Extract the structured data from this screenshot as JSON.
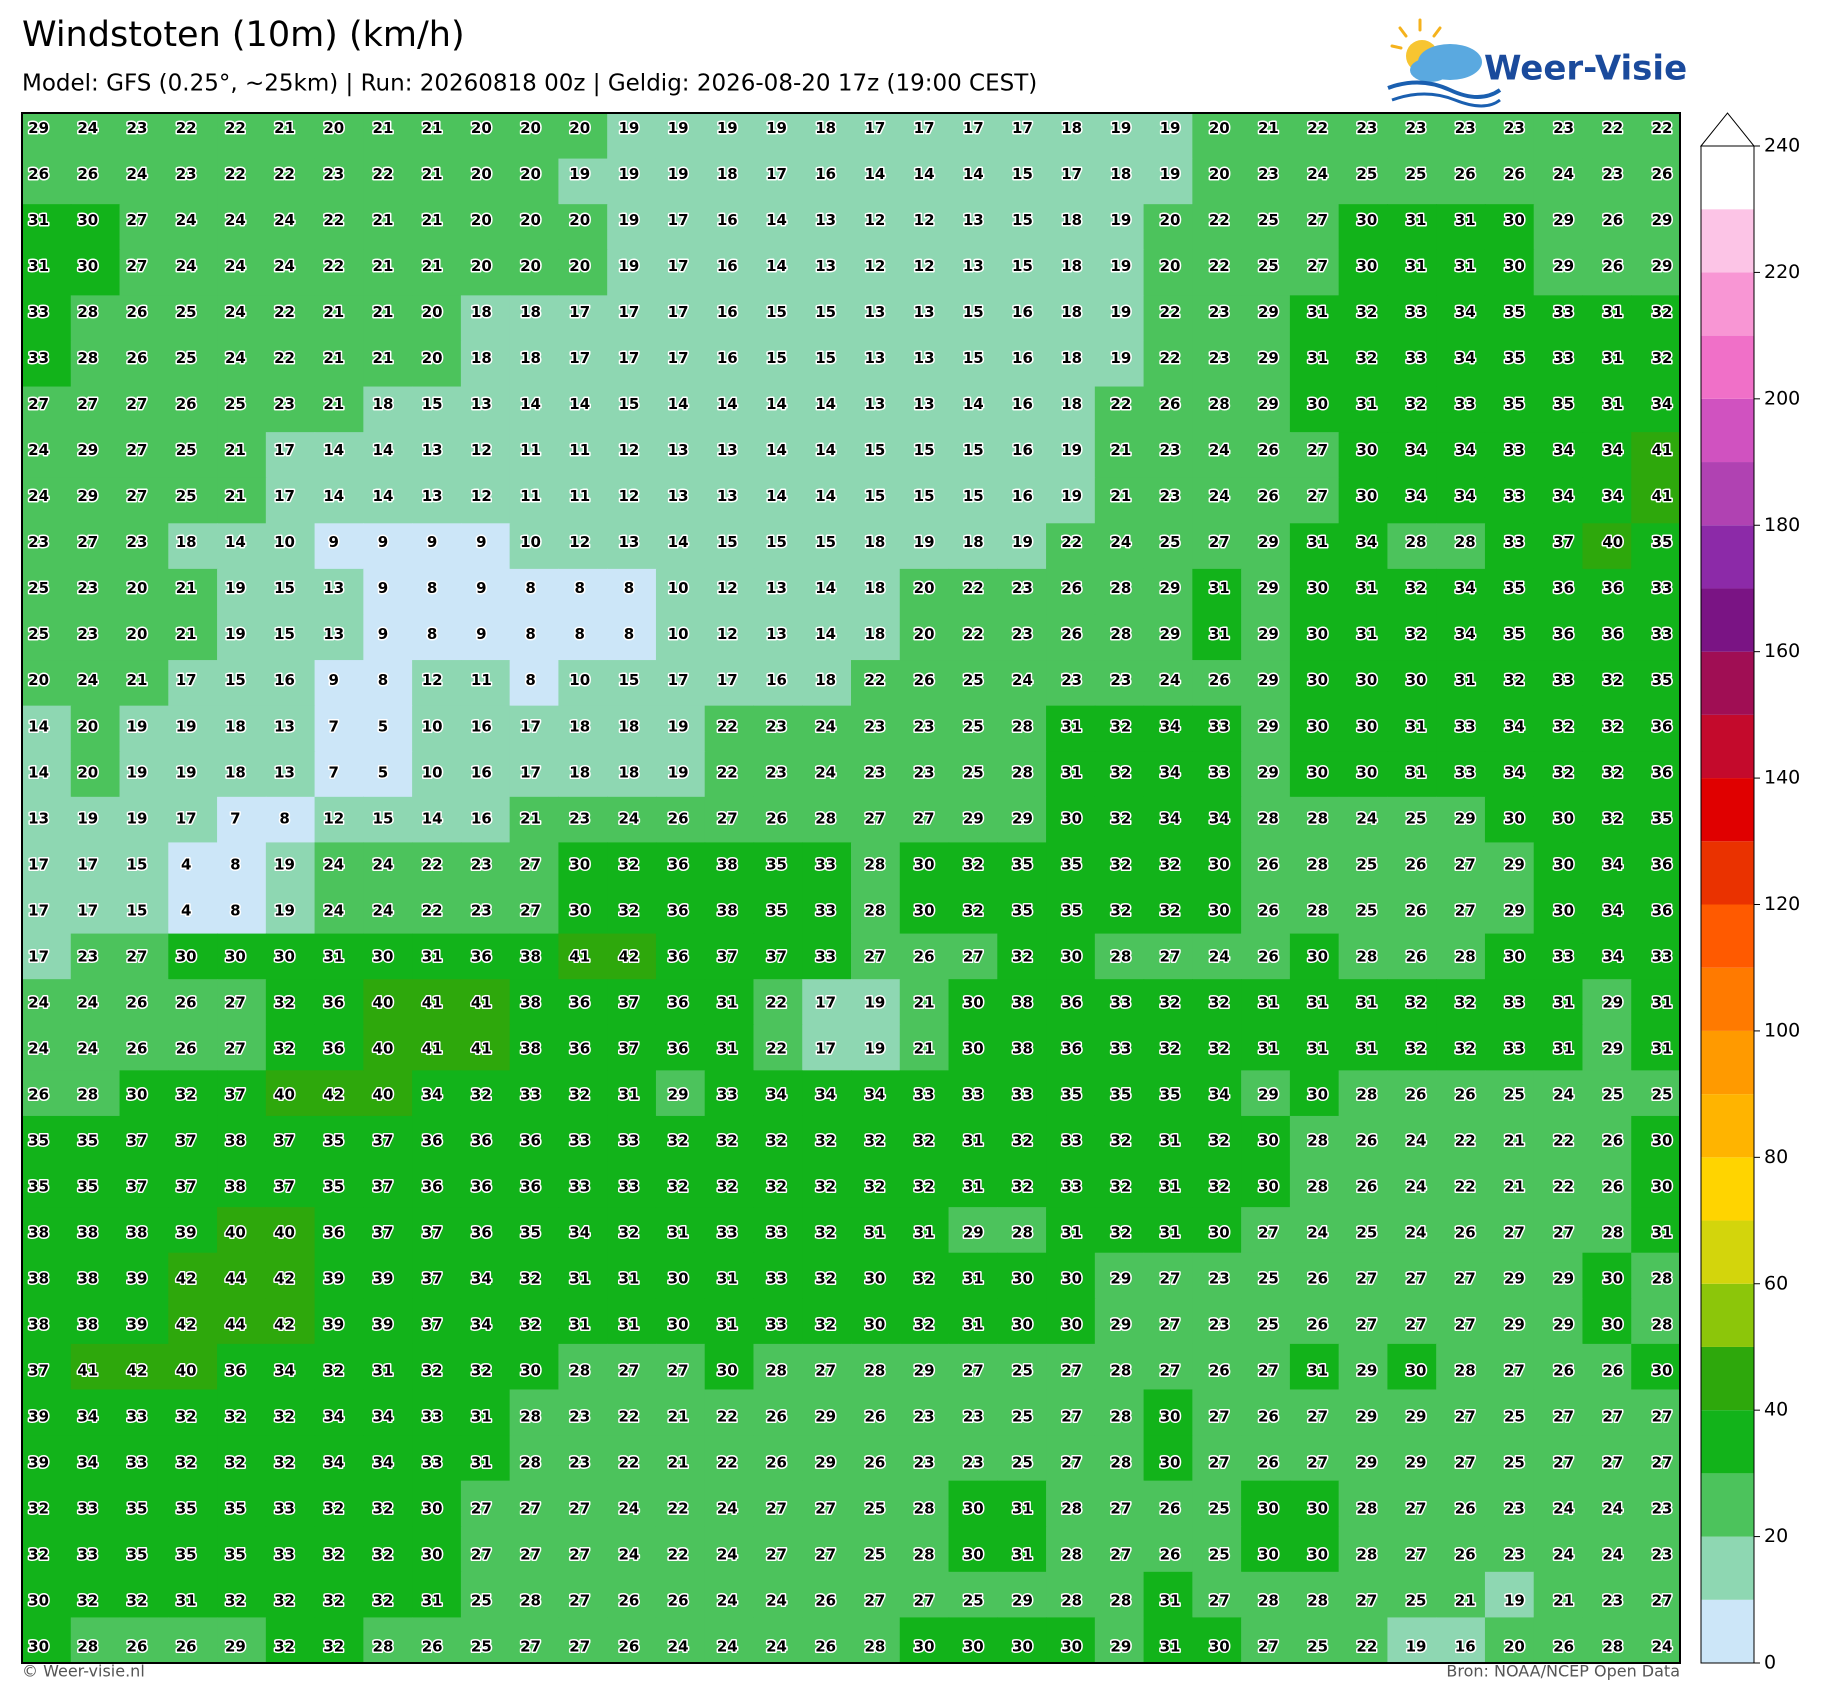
{
  "chart_data": {
    "type": "heatmap",
    "title": "Windstoten (10m) (km/h)",
    "subtitle": "Model: GFS (0.25°, ~25km)  |  Run: 20260818 00z  |  Geldig: 2026-08-20 17z (19:00 CEST)",
    "values": [
      [
        29,
        24,
        23,
        22,
        22,
        21,
        20,
        21,
        21,
        20,
        20,
        20,
        19,
        19,
        19,
        19,
        18,
        17,
        17,
        17,
        17,
        18,
        19,
        19,
        20,
        21,
        22,
        23,
        23,
        23,
        23,
        23,
        22,
        22
      ],
      [
        26,
        26,
        24,
        23,
        22,
        22,
        23,
        22,
        21,
        20,
        20,
        19,
        19,
        19,
        18,
        17,
        16,
        14,
        14,
        14,
        15,
        17,
        18,
        19,
        20,
        23,
        24,
        25,
        25,
        26,
        26,
        24,
        23,
        26
      ],
      [
        31,
        30,
        27,
        24,
        24,
        24,
        22,
        21,
        21,
        20,
        20,
        20,
        19,
        17,
        16,
        14,
        13,
        12,
        12,
        13,
        15,
        18,
        19,
        20,
        22,
        25,
        27,
        30,
        31,
        31,
        30,
        29,
        26,
        29
      ],
      [
        31,
        30,
        27,
        24,
        24,
        24,
        22,
        21,
        21,
        20,
        20,
        20,
        19,
        17,
        16,
        14,
        13,
        12,
        12,
        13,
        15,
        18,
        19,
        20,
        22,
        25,
        27,
        30,
        31,
        31,
        30,
        29,
        26,
        29
      ],
      [
        33,
        28,
        26,
        25,
        24,
        22,
        21,
        21,
        20,
        18,
        18,
        17,
        17,
        17,
        16,
        15,
        15,
        13,
        13,
        15,
        16,
        18,
        19,
        22,
        23,
        29,
        31,
        32,
        33,
        34,
        35,
        33,
        31,
        32
      ],
      [
        33,
        28,
        26,
        25,
        24,
        22,
        21,
        21,
        20,
        18,
        18,
        17,
        17,
        17,
        16,
        15,
        15,
        13,
        13,
        15,
        16,
        18,
        19,
        22,
        23,
        29,
        31,
        32,
        33,
        34,
        35,
        33,
        31,
        32
      ],
      [
        27,
        27,
        27,
        26,
        25,
        23,
        21,
        18,
        15,
        13,
        14,
        14,
        15,
        14,
        14,
        14,
        14,
        13,
        13,
        14,
        16,
        18,
        22,
        26,
        28,
        29,
        30,
        31,
        32,
        33,
        35,
        35,
        31,
        34
      ],
      [
        24,
        29,
        27,
        25,
        21,
        17,
        14,
        14,
        13,
        12,
        11,
        11,
        12,
        13,
        13,
        14,
        14,
        15,
        15,
        15,
        16,
        19,
        21,
        23,
        24,
        26,
        27,
        30,
        34,
        34,
        33,
        34,
        34,
        41
      ],
      [
        24,
        29,
        27,
        25,
        21,
        17,
        14,
        14,
        13,
        12,
        11,
        11,
        12,
        13,
        13,
        14,
        14,
        15,
        15,
        15,
        16,
        19,
        21,
        23,
        24,
        26,
        27,
        30,
        34,
        34,
        33,
        34,
        34,
        41
      ],
      [
        23,
        27,
        23,
        18,
        14,
        10,
        9,
        9,
        9,
        9,
        10,
        12,
        13,
        14,
        15,
        15,
        15,
        18,
        19,
        18,
        19,
        22,
        24,
        25,
        27,
        29,
        31,
        34,
        28,
        28,
        33,
        37,
        40,
        35
      ],
      [
        25,
        23,
        20,
        21,
        19,
        15,
        13,
        9,
        8,
        9,
        8,
        8,
        8,
        10,
        12,
        13,
        14,
        18,
        20,
        22,
        23,
        26,
        28,
        29,
        31,
        29,
        30,
        31,
        32,
        34,
        35,
        36,
        36,
        33
      ],
      [
        25,
        23,
        20,
        21,
        19,
        15,
        13,
        9,
        8,
        9,
        8,
        8,
        8,
        10,
        12,
        13,
        14,
        18,
        20,
        22,
        23,
        26,
        28,
        29,
        31,
        29,
        30,
        31,
        32,
        34,
        35,
        36,
        36,
        33
      ],
      [
        20,
        24,
        21,
        17,
        15,
        16,
        9,
        8,
        12,
        11,
        8,
        10,
        15,
        17,
        17,
        16,
        18,
        22,
        26,
        25,
        24,
        23,
        23,
        24,
        26,
        29,
        30,
        30,
        30,
        31,
        32,
        33,
        32,
        35
      ],
      [
        14,
        20,
        19,
        19,
        18,
        13,
        7,
        5,
        10,
        16,
        17,
        18,
        18,
        19,
        22,
        23,
        24,
        23,
        23,
        25,
        28,
        31,
        32,
        34,
        33,
        29,
        30,
        30,
        31,
        33,
        34,
        32,
        32,
        36
      ],
      [
        14,
        20,
        19,
        19,
        18,
        13,
        7,
        5,
        10,
        16,
        17,
        18,
        18,
        19,
        22,
        23,
        24,
        23,
        23,
        25,
        28,
        31,
        32,
        34,
        33,
        29,
        30,
        30,
        31,
        33,
        34,
        32,
        32,
        36
      ],
      [
        13,
        19,
        19,
        17,
        7,
        8,
        12,
        15,
        14,
        16,
        21,
        23,
        24,
        26,
        27,
        26,
        28,
        27,
        27,
        29,
        29,
        30,
        32,
        34,
        34,
        28,
        28,
        24,
        25,
        29,
        30,
        30,
        32,
        35
      ],
      [
        17,
        17,
        15,
        4,
        8,
        19,
        24,
        24,
        22,
        23,
        27,
        30,
        32,
        36,
        38,
        35,
        33,
        28,
        30,
        32,
        35,
        35,
        32,
        32,
        30,
        26,
        28,
        25,
        26,
        27,
        29,
        30,
        34,
        36
      ],
      [
        17,
        17,
        15,
        4,
        8,
        19,
        24,
        24,
        22,
        23,
        27,
        30,
        32,
        36,
        38,
        35,
        33,
        28,
        30,
        32,
        35,
        35,
        32,
        32,
        30,
        26,
        28,
        25,
        26,
        27,
        29,
        30,
        34,
        36
      ],
      [
        17,
        23,
        27,
        30,
        30,
        30,
        31,
        30,
        31,
        36,
        38,
        41,
        42,
        36,
        37,
        37,
        33,
        27,
        26,
        27,
        32,
        30,
        28,
        27,
        24,
        26,
        30,
        28,
        26,
        28,
        30,
        33,
        34,
        33
      ],
      [
        24,
        24,
        26,
        26,
        27,
        32,
        36,
        40,
        41,
        41,
        38,
        36,
        37,
        36,
        31,
        22,
        17,
        19,
        21,
        30,
        38,
        36,
        33,
        32,
        32,
        31,
        31,
        31,
        32,
        32,
        33,
        31,
        29,
        31
      ],
      [
        24,
        24,
        26,
        26,
        27,
        32,
        36,
        40,
        41,
        41,
        38,
        36,
        37,
        36,
        31,
        22,
        17,
        19,
        21,
        30,
        38,
        36,
        33,
        32,
        32,
        31,
        31,
        31,
        32,
        32,
        33,
        31,
        29,
        31
      ],
      [
        26,
        28,
        30,
        32,
        37,
        40,
        42,
        40,
        34,
        32,
        33,
        32,
        31,
        29,
        33,
        34,
        34,
        34,
        33,
        33,
        33,
        35,
        35,
        35,
        34,
        29,
        30,
        28,
        26,
        26,
        25,
        24,
        25,
        25
      ],
      [
        35,
        35,
        37,
        37,
        38,
        37,
        35,
        37,
        36,
        36,
        36,
        33,
        33,
        32,
        32,
        32,
        32,
        32,
        32,
        31,
        32,
        33,
        32,
        31,
        32,
        30,
        28,
        26,
        24,
        22,
        21,
        22,
        26,
        30
      ],
      [
        35,
        35,
        37,
        37,
        38,
        37,
        35,
        37,
        36,
        36,
        36,
        33,
        33,
        32,
        32,
        32,
        32,
        32,
        32,
        31,
        32,
        33,
        32,
        31,
        32,
        30,
        28,
        26,
        24,
        22,
        21,
        22,
        26,
        30
      ],
      [
        38,
        38,
        38,
        39,
        40,
        40,
        36,
        37,
        37,
        36,
        35,
        34,
        32,
        31,
        33,
        33,
        32,
        31,
        31,
        29,
        28,
        31,
        32,
        31,
        30,
        27,
        24,
        25,
        24,
        26,
        27,
        27,
        28,
        31
      ],
      [
        38,
        38,
        39,
        42,
        44,
        42,
        39,
        39,
        37,
        34,
        32,
        31,
        31,
        30,
        31,
        33,
        32,
        30,
        32,
        31,
        30,
        30,
        29,
        27,
        23,
        25,
        26,
        27,
        27,
        27,
        29,
        29,
        30,
        28
      ],
      [
        38,
        38,
        39,
        42,
        44,
        42,
        39,
        39,
        37,
        34,
        32,
        31,
        31,
        30,
        31,
        33,
        32,
        30,
        32,
        31,
        30,
        30,
        29,
        27,
        23,
        25,
        26,
        27,
        27,
        27,
        29,
        29,
        30,
        28
      ],
      [
        37,
        41,
        42,
        40,
        36,
        34,
        32,
        31,
        32,
        32,
        30,
        28,
        27,
        27,
        30,
        28,
        27,
        28,
        29,
        27,
        25,
        27,
        28,
        27,
        26,
        27,
        31,
        29,
        30,
        28,
        27,
        26,
        26,
        30
      ],
      [
        39,
        34,
        33,
        32,
        32,
        32,
        34,
        34,
        33,
        31,
        28,
        23,
        22,
        21,
        22,
        26,
        29,
        26,
        23,
        23,
        25,
        27,
        28,
        30,
        27,
        26,
        27,
        29,
        29,
        27,
        25,
        27,
        27,
        27
      ],
      [
        39,
        34,
        33,
        32,
        32,
        32,
        34,
        34,
        33,
        31,
        28,
        23,
        22,
        21,
        22,
        26,
        29,
        26,
        23,
        23,
        25,
        27,
        28,
        30,
        27,
        26,
        27,
        29,
        29,
        27,
        25,
        27,
        27,
        27
      ],
      [
        32,
        33,
        35,
        35,
        35,
        33,
        32,
        32,
        30,
        27,
        27,
        27,
        24,
        22,
        24,
        27,
        27,
        25,
        28,
        30,
        31,
        28,
        27,
        26,
        25,
        30,
        30,
        28,
        27,
        26,
        23,
        24,
        24,
        23
      ],
      [
        32,
        33,
        35,
        35,
        35,
        33,
        32,
        32,
        30,
        27,
        27,
        27,
        24,
        22,
        24,
        27,
        27,
        25,
        28,
        30,
        31,
        28,
        27,
        26,
        25,
        30,
        30,
        28,
        27,
        26,
        23,
        24,
        24,
        23
      ],
      [
        30,
        32,
        32,
        31,
        32,
        32,
        32,
        32,
        31,
        25,
        28,
        27,
        26,
        26,
        24,
        24,
        26,
        27,
        27,
        25,
        29,
        28,
        28,
        31,
        27,
        28,
        28,
        27,
        25,
        21,
        19,
        21,
        23,
        27
      ],
      [
        30,
        28,
        26,
        26,
        29,
        32,
        32,
        28,
        26,
        25,
        27,
        27,
        26,
        24,
        24,
        24,
        26,
        28,
        30,
        30,
        30,
        30,
        29,
        31,
        30,
        27,
        25,
        22,
        19,
        16,
        20,
        26,
        28,
        24
      ]
    ],
    "colorbar": {
      "bounds": [
        0,
        10,
        20,
        30,
        40,
        50,
        60,
        70,
        80,
        90,
        100,
        110,
        120,
        130,
        140,
        150,
        160,
        170,
        180,
        190,
        200,
        210,
        220,
        230,
        240
      ],
      "colors": [
        "#cce6f8",
        "#8ed7b2",
        "#4cc35c",
        "#12b31a",
        "#2ea80c",
        "#8cc60a",
        "#d3d50c",
        "#ffd400",
        "#ffb400",
        "#ff9a00",
        "#ff7a00",
        "#ff5a00",
        "#ea3200",
        "#e00000",
        "#c40a2c",
        "#a00e54",
        "#7a1484",
        "#8c2aa8",
        "#b042b2",
        "#d052c0",
        "#f070c8",
        "#f896d4",
        "#fcc4e6",
        "#ffffff"
      ],
      "ticks": [
        0,
        20,
        40,
        60,
        80,
        100,
        120,
        140,
        160,
        180,
        200,
        220,
        240
      ]
    }
  },
  "logo": "Weer-Visie",
  "footer": {
    "left": "© Weer-visie.nl",
    "right": "Bron: NOAA/NCEP Open Data"
  }
}
